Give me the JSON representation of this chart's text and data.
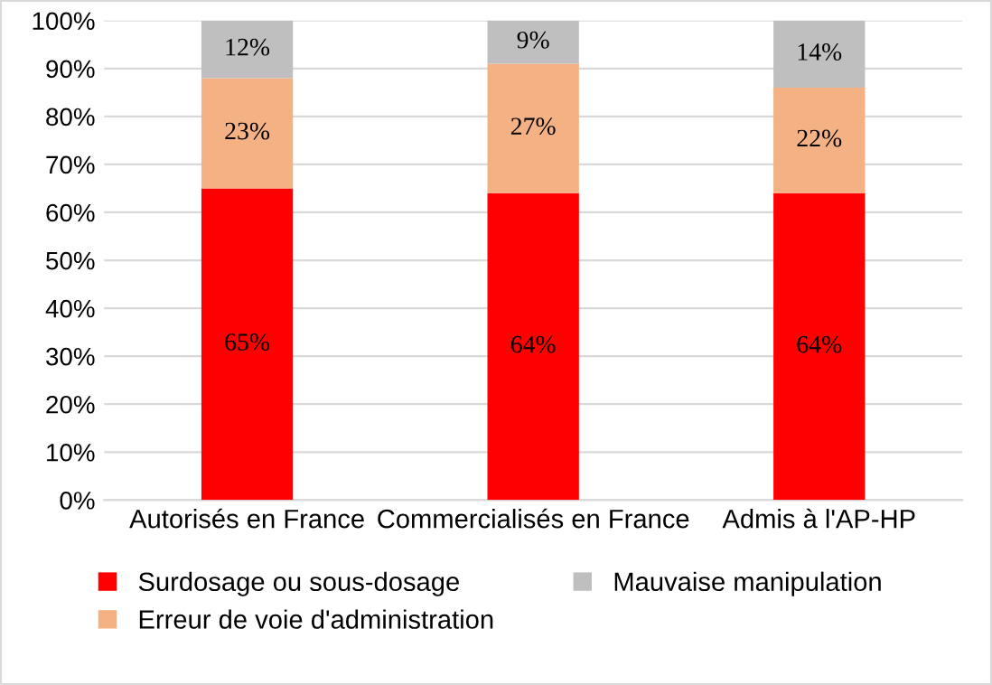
{
  "chart_data": {
    "type": "bar",
    "stacked": true,
    "categories": [
      "Autorisés en France",
      "Commercialisés en France",
      "Admis à l'AP-HP"
    ],
    "series": [
      {
        "name": "Surdosage ou sous-dosage",
        "color": "#ff0000",
        "values": [
          65,
          64,
          64
        ]
      },
      {
        "name": "Erreur de voie d'administration",
        "color": "#f4b183",
        "values": [
          23,
          27,
          22
        ]
      },
      {
        "name": "Mauvaise manipulation",
        "color": "#bfbfbf",
        "values": [
          12,
          9,
          14
        ]
      }
    ],
    "ylim": [
      0,
      100
    ],
    "yticks": [
      {
        "value": 0,
        "label": "0%"
      },
      {
        "value": 10,
        "label": "10%"
      },
      {
        "value": 20,
        "label": "20%"
      },
      {
        "value": 30,
        "label": "30%"
      },
      {
        "value": 40,
        "label": "40%"
      },
      {
        "value": 50,
        "label": "50%"
      },
      {
        "value": 60,
        "label": "60%"
      },
      {
        "value": 70,
        "label": "70%"
      },
      {
        "value": 80,
        "label": "80%"
      },
      {
        "value": 90,
        "label": "90%"
      },
      {
        "value": 100,
        "label": "100%"
      }
    ],
    "value_labels": [
      [
        "65%",
        "64%",
        "64%"
      ],
      [
        "23%",
        "27%",
        "22%"
      ],
      [
        "12%",
        "9%",
        "14%"
      ]
    ],
    "grid": "y",
    "legend": "bottom"
  }
}
